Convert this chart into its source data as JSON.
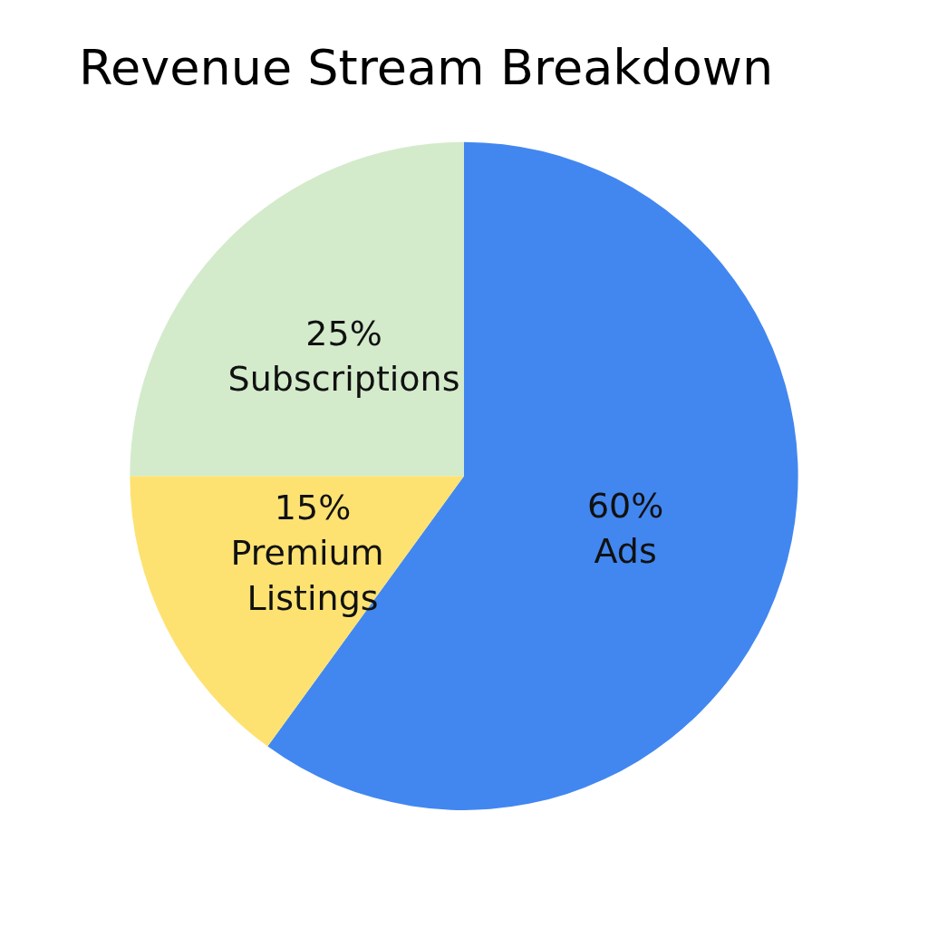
{
  "chart_data": {
    "type": "pie",
    "title": "Revenue Stream Breakdown",
    "categories": [
      "Ads",
      "Premium Listings",
      "Subscriptions"
    ],
    "values": [
      60,
      15,
      25
    ],
    "value_labels": [
      "60%",
      "15%",
      "25%"
    ],
    "colors": [
      "#4287f0",
      "#fde272",
      "#d3ebcb"
    ],
    "legend": false
  }
}
